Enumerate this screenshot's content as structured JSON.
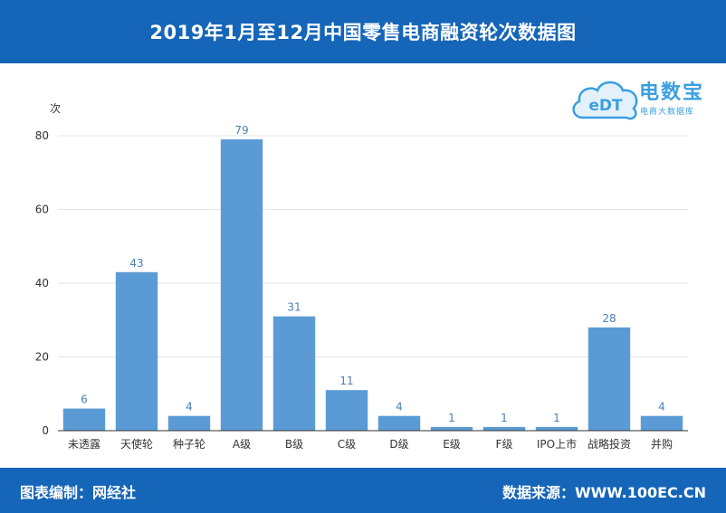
{
  "header": {
    "title": "2019年1月至12月中国零售电商融资轮次数据图"
  },
  "logo": {
    "mark": "eDT",
    "name": "电数宝",
    "subtitle": "电商大数据库"
  },
  "footer": {
    "left": "图表编制：网经社",
    "right": "数据来源：WWW.100EC.CN"
  },
  "colors": {
    "header_bg": "#1565b8",
    "bar": "#5b9bd5",
    "label": "#4a7fb5",
    "logo": "#3b9fe0"
  },
  "chart_data": {
    "type": "bar",
    "title": "2019年1月至12月中国零售电商融资轮次数据图",
    "xlabel": "",
    "ylabel": "次",
    "ylim": [
      0,
      80
    ],
    "yticks": [
      0,
      20,
      40,
      60,
      80
    ],
    "grid": true,
    "categories": [
      "未透露",
      "天使轮",
      "种子轮",
      "A级",
      "B级",
      "C级",
      "D级",
      "E级",
      "F级",
      "IPO上市",
      "战略投资",
      "并购"
    ],
    "values": [
      6,
      43,
      4,
      79,
      31,
      11,
      4,
      1,
      1,
      1,
      28,
      4
    ],
    "data_labels": true
  }
}
